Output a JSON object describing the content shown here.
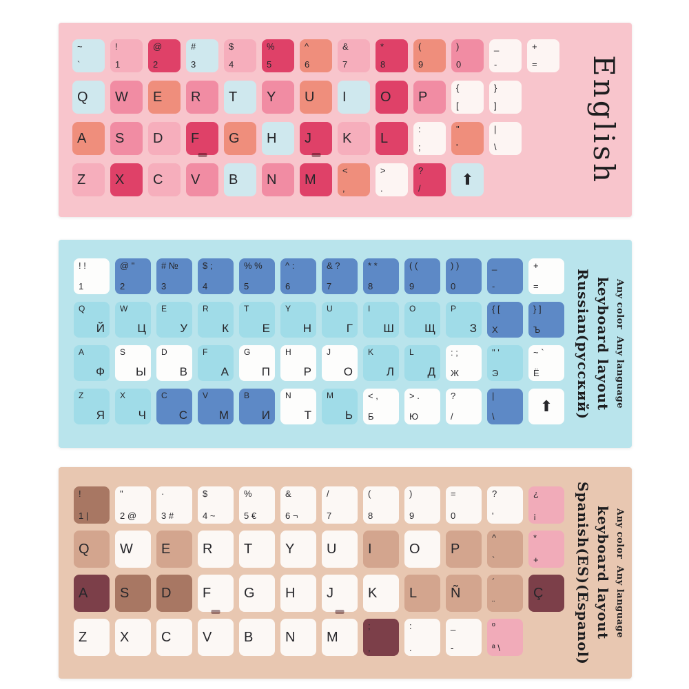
{
  "page": {
    "background": "#ffffff"
  },
  "sheets": [
    {
      "name": "english",
      "bg": "#f8c5cc",
      "label": {
        "lines": [
          "English"
        ],
        "sub": ""
      },
      "palette": {
        "blue": "#cfe8ee",
        "pink1": "#f6aebc",
        "pink2": "#f18ca3",
        "red": "#df4168",
        "salmon": "#ef8e7c",
        "white": "#fdf5f3"
      },
      "rows": [
        [
          {
            "t": "~",
            "b": "`",
            "c": "blue"
          },
          {
            "t": "!",
            "b": "1",
            "c": "pink1"
          },
          {
            "t": "@",
            "b": "2",
            "c": "red"
          },
          {
            "t": "#",
            "b": "3",
            "c": "blue"
          },
          {
            "t": "$",
            "b": "4",
            "c": "pink1"
          },
          {
            "t": "%",
            "b": "5",
            "c": "red"
          },
          {
            "t": "^",
            "b": "6",
            "c": "salmon"
          },
          {
            "t": "&",
            "b": "7",
            "c": "pink1"
          },
          {
            "t": "*",
            "b": "8",
            "c": "red"
          },
          {
            "t": "(",
            "b": "9",
            "c": "salmon"
          },
          {
            "t": ")",
            "b": "0",
            "c": "pink2"
          },
          {
            "t": "_",
            "b": "-",
            "c": "white"
          },
          {
            "t": "+",
            "b": "=",
            "c": "white"
          }
        ],
        [
          {
            "t": "Q",
            "b": "",
            "c": "blue"
          },
          {
            "t": "W",
            "b": "",
            "c": "pink2"
          },
          {
            "t": "E",
            "b": "",
            "c": "salmon"
          },
          {
            "t": "R",
            "b": "",
            "c": "pink2"
          },
          {
            "t": "T",
            "b": "",
            "c": "blue"
          },
          {
            "t": "Y",
            "b": "",
            "c": "pink2"
          },
          {
            "t": "U",
            "b": "",
            "c": "salmon"
          },
          {
            "t": "I",
            "b": "",
            "c": "blue"
          },
          {
            "t": "O",
            "b": "",
            "c": "red"
          },
          {
            "t": "P",
            "b": "",
            "c": "pink2"
          },
          {
            "t": "{",
            "b": "[",
            "c": "white"
          },
          {
            "t": "}",
            "b": "]",
            "c": "white"
          }
        ],
        [
          {
            "t": "A",
            "b": "",
            "c": "salmon"
          },
          {
            "t": "S",
            "b": "",
            "c": "pink2"
          },
          {
            "t": "D",
            "b": "",
            "c": "pink1"
          },
          {
            "t": "F",
            "b": "",
            "c": "red",
            "bump": true
          },
          {
            "t": "G",
            "b": "",
            "c": "salmon"
          },
          {
            "t": "H",
            "b": "",
            "c": "blue"
          },
          {
            "t": "J",
            "b": "",
            "c": "red",
            "bump": true
          },
          {
            "t": "K",
            "b": "",
            "c": "pink1"
          },
          {
            "t": "L",
            "b": "",
            "c": "red"
          },
          {
            "t": ":",
            "b": ";",
            "c": "white"
          },
          {
            "t": "\"",
            "b": "'",
            "c": "salmon"
          },
          {
            "t": "|",
            "b": "\\",
            "c": "white"
          }
        ],
        [
          {
            "t": "Z",
            "b": "",
            "c": "pink1"
          },
          {
            "t": "X",
            "b": "",
            "c": "red"
          },
          {
            "t": "C",
            "b": "",
            "c": "pink1"
          },
          {
            "t": "V",
            "b": "",
            "c": "pink2"
          },
          {
            "t": "B",
            "b": "",
            "c": "blue"
          },
          {
            "t": "N",
            "b": "",
            "c": "pink2"
          },
          {
            "t": "M",
            "b": "",
            "c": "red"
          },
          {
            "t": "<",
            "b": ",",
            "c": "salmon"
          },
          {
            "t": ">",
            "b": ".",
            "c": "white"
          },
          {
            "t": "?",
            "b": "/",
            "c": "red"
          },
          {
            "t": "⬆",
            "b": "",
            "c": "blue",
            "cls": "centered"
          }
        ]
      ]
    },
    {
      "name": "russian",
      "bg": "#b9e4ec",
      "label": {
        "lines": [
          "Russian(русский)",
          "keyboard layout"
        ],
        "sub": "Any color  Any language"
      },
      "palette": {
        "cyan": "#a0dce8",
        "blue": "#5d89c6",
        "white": "#fdfdfc"
      },
      "rows": [
        [
          {
            "t": "! !",
            "b": "1",
            "c": "white"
          },
          {
            "t": "@ \"",
            "b": "2",
            "c": "blue"
          },
          {
            "t": "# №",
            "b": "3",
            "c": "blue"
          },
          {
            "t": "$ ;",
            "b": "4",
            "c": "blue"
          },
          {
            "t": "% %",
            "b": "5",
            "c": "blue"
          },
          {
            "t": "^ :",
            "b": "6",
            "c": "blue"
          },
          {
            "t": "& ?",
            "b": "7",
            "c": "blue"
          },
          {
            "t": "* *",
            "b": "8",
            "c": "blue"
          },
          {
            "t": "( (",
            "b": "9",
            "c": "blue"
          },
          {
            "t": ") )",
            "b": "0",
            "c": "blue"
          },
          {
            "t": "_",
            "b": "-",
            "c": "blue"
          },
          {
            "t": "+",
            "b": "=",
            "c": "white"
          }
        ],
        [
          {
            "t": "Q",
            "b": "Й",
            "c": "cyan"
          },
          {
            "t": "W",
            "b": "Ц",
            "c": "cyan"
          },
          {
            "t": "E",
            "b": "У",
            "c": "cyan"
          },
          {
            "t": "R",
            "b": "К",
            "c": "cyan"
          },
          {
            "t": "T",
            "b": "Е",
            "c": "cyan"
          },
          {
            "t": "Y",
            "b": "Н",
            "c": "cyan"
          },
          {
            "t": "U",
            "b": "Г",
            "c": "cyan"
          },
          {
            "t": "I",
            "b": "Ш",
            "c": "cyan"
          },
          {
            "t": "O",
            "b": "Щ",
            "c": "cyan"
          },
          {
            "t": "P",
            "b": "З",
            "c": "cyan"
          },
          {
            "t": "{ [",
            "b": "Х",
            "c": "blue"
          },
          {
            "t": "} ]",
            "b": "Ъ",
            "c": "blue"
          }
        ],
        [
          {
            "t": "A",
            "b": "Ф",
            "c": "cyan"
          },
          {
            "t": "S",
            "b": "Ы",
            "c": "white"
          },
          {
            "t": "D",
            "b": "В",
            "c": "white"
          },
          {
            "t": "F",
            "b": "А",
            "c": "cyan"
          },
          {
            "t": "G",
            "b": "П",
            "c": "white"
          },
          {
            "t": "H",
            "b": "Р",
            "c": "white"
          },
          {
            "t": "J",
            "b": "О",
            "c": "white"
          },
          {
            "t": "K",
            "b": "Л",
            "c": "cyan"
          },
          {
            "t": "L",
            "b": "Д",
            "c": "cyan"
          },
          {
            "t": ": ;",
            "b": "Ж",
            "c": "white"
          },
          {
            "t": "\" '",
            "b": "Э",
            "c": "cyan"
          },
          {
            "t": "~ `",
            "b": "Ё",
            "c": "white"
          }
        ],
        [
          {
            "t": "Z",
            "b": "Я",
            "c": "cyan"
          },
          {
            "t": "X",
            "b": "Ч",
            "c": "cyan"
          },
          {
            "t": "C",
            "b": "С",
            "c": "blue"
          },
          {
            "t": "V",
            "b": "М",
            "c": "blue"
          },
          {
            "t": "B",
            "b": "И",
            "c": "blue"
          },
          {
            "t": "N",
            "b": "Т",
            "c": "white"
          },
          {
            "t": "M",
            "b": "Ь",
            "c": "cyan"
          },
          {
            "t": "< ,",
            "b": "Б",
            "c": "white"
          },
          {
            "t": "> .",
            "b": "Ю",
            "c": "white"
          },
          {
            "t": "?",
            "b": "/",
            "c": "white"
          },
          {
            "t": "|",
            "b": "\\",
            "c": "blue"
          },
          {
            "t": "⬆",
            "b": "",
            "c": "white",
            "cls": "centered"
          }
        ]
      ]
    },
    {
      "name": "spanish",
      "bg": "#e8c7b1",
      "label": {
        "lines": [
          "Spanish(ES)(Espanol)",
          "keyboard layout"
        ],
        "sub": "Any color  Any language"
      },
      "palette": {
        "white": "#fcf8f5",
        "tan": "#d3a58e",
        "brown": "#a87763",
        "maroon": "#7c3f49",
        "pink": "#f1abb9"
      },
      "rows": [
        [
          {
            "t": "!",
            "b": "1 |",
            "c": "brown"
          },
          {
            "t": "\"",
            "b": "2 @",
            "c": "white"
          },
          {
            "t": "·",
            "b": "3 #",
            "c": "white"
          },
          {
            "t": "$",
            "b": "4 ~",
            "c": "white"
          },
          {
            "t": "%",
            "b": "5 €",
            "c": "white"
          },
          {
            "t": "&",
            "b": "6 ¬",
            "c": "white"
          },
          {
            "t": "/",
            "b": "7",
            "c": "white"
          },
          {
            "t": "(",
            "b": "8",
            "c": "white"
          },
          {
            "t": ")",
            "b": "9",
            "c": "white"
          },
          {
            "t": "=",
            "b": "0",
            "c": "white"
          },
          {
            "t": "?",
            "b": "'",
            "c": "white"
          },
          {
            "t": "¿",
            "b": "¡",
            "c": "pink"
          }
        ],
        [
          {
            "t": "Q",
            "b": "",
            "c": "tan"
          },
          {
            "t": "W",
            "b": "",
            "c": "white"
          },
          {
            "t": "E",
            "b": "",
            "c": "tan"
          },
          {
            "t": "R",
            "b": "",
            "c": "white"
          },
          {
            "t": "T",
            "b": "",
            "c": "white"
          },
          {
            "t": "Y",
            "b": "",
            "c": "white"
          },
          {
            "t": "U",
            "b": "",
            "c": "white"
          },
          {
            "t": "I",
            "b": "",
            "c": "tan"
          },
          {
            "t": "O",
            "b": "",
            "c": "white"
          },
          {
            "t": "P",
            "b": "",
            "c": "tan"
          },
          {
            "t": "^",
            "b": "`",
            "c": "tan"
          },
          {
            "t": "*",
            "b": "+",
            "c": "pink"
          }
        ],
        [
          {
            "t": "A",
            "b": "",
            "c": "maroon"
          },
          {
            "t": "S",
            "b": "",
            "c": "brown"
          },
          {
            "t": "D",
            "b": "",
            "c": "brown"
          },
          {
            "t": "F",
            "b": "",
            "c": "white",
            "bump": true
          },
          {
            "t": "G",
            "b": "",
            "c": "white"
          },
          {
            "t": "H",
            "b": "",
            "c": "white"
          },
          {
            "t": "J",
            "b": "",
            "c": "white",
            "bump": true
          },
          {
            "t": "K",
            "b": "",
            "c": "white"
          },
          {
            "t": "L",
            "b": "",
            "c": "tan"
          },
          {
            "t": "Ñ",
            "b": "",
            "c": "tan"
          },
          {
            "t": "´",
            "b": "¨",
            "c": "tan"
          },
          {
            "t": "Ç",
            "b": "",
            "c": "maroon"
          }
        ],
        [
          {
            "t": "Z",
            "b": "",
            "c": "white"
          },
          {
            "t": "X",
            "b": "",
            "c": "white"
          },
          {
            "t": "C",
            "b": "",
            "c": "white"
          },
          {
            "t": "V",
            "b": "",
            "c": "white"
          },
          {
            "t": "B",
            "b": "",
            "c": "white"
          },
          {
            "t": "N",
            "b": "",
            "c": "white"
          },
          {
            "t": "M",
            "b": "",
            "c": "white"
          },
          {
            "t": ";",
            "b": ",",
            "c": "maroon"
          },
          {
            "t": ":",
            "b": ".",
            "c": "white"
          },
          {
            "t": "_",
            "b": "-",
            "c": "white"
          },
          {
            "t": "º",
            "b": "ª \\",
            "c": "pink"
          }
        ]
      ]
    }
  ]
}
